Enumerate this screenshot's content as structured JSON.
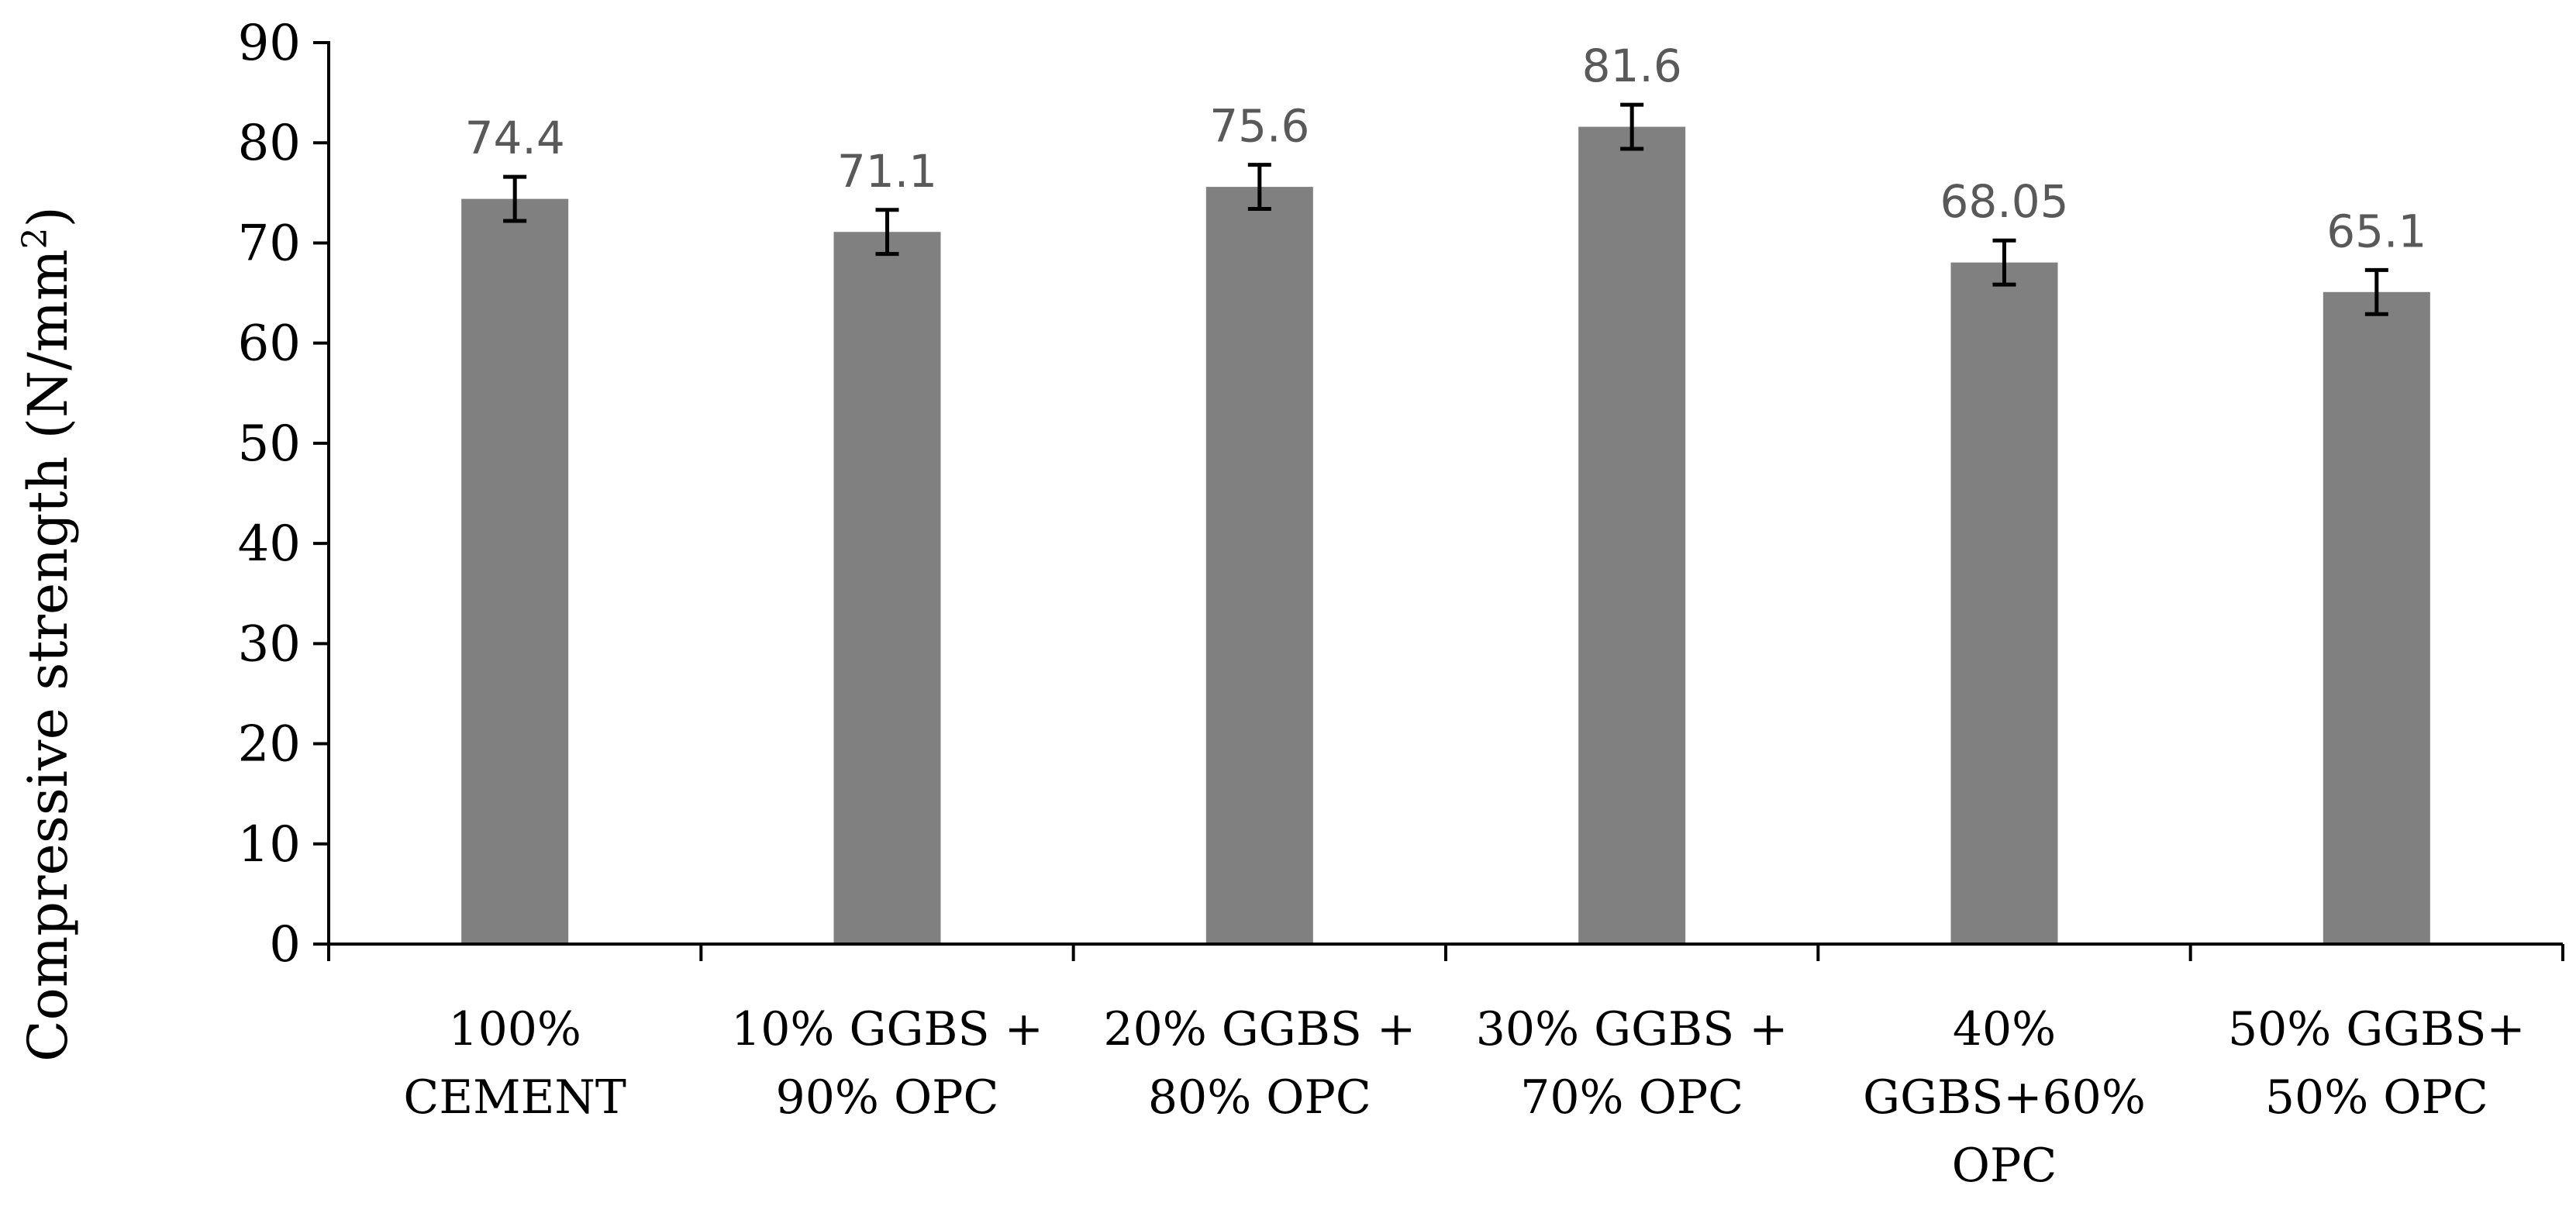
{
  "chart_data": {
    "type": "bar",
    "title": "",
    "xlabel": "",
    "ylabel": "Compressive strength (N/mm",
    "ylabel_superscript": "2",
    "ylabel_suffix": ")",
    "ylim": [
      0,
      90
    ],
    "yticks": [
      0,
      10,
      20,
      30,
      40,
      50,
      60,
      70,
      80,
      90
    ],
    "grid": false,
    "legend": "none",
    "categories": [
      [
        "100%",
        "CEMENT"
      ],
      [
        "10% GGBS +",
        "90% OPC"
      ],
      [
        "20% GGBS +",
        "80% OPC"
      ],
      [
        "30% GGBS +",
        "70% OPC"
      ],
      [
        "40%",
        "GGBS+60%",
        "OPC"
      ],
      [
        "50% GGBS+",
        "50% OPC"
      ]
    ],
    "values": [
      74.4,
      71.1,
      75.6,
      81.6,
      68.05,
      65.1
    ],
    "data_labels": [
      "74.4",
      "71.1",
      "75.6",
      "81.6",
      "68.05",
      "65.1"
    ],
    "error": [
      2.2,
      2.2,
      2.2,
      2.2,
      2.2,
      2.2
    ],
    "bar_color": "#808080",
    "error_color": "#000000",
    "label_color": "#595959",
    "axis_color": "#000000"
  }
}
